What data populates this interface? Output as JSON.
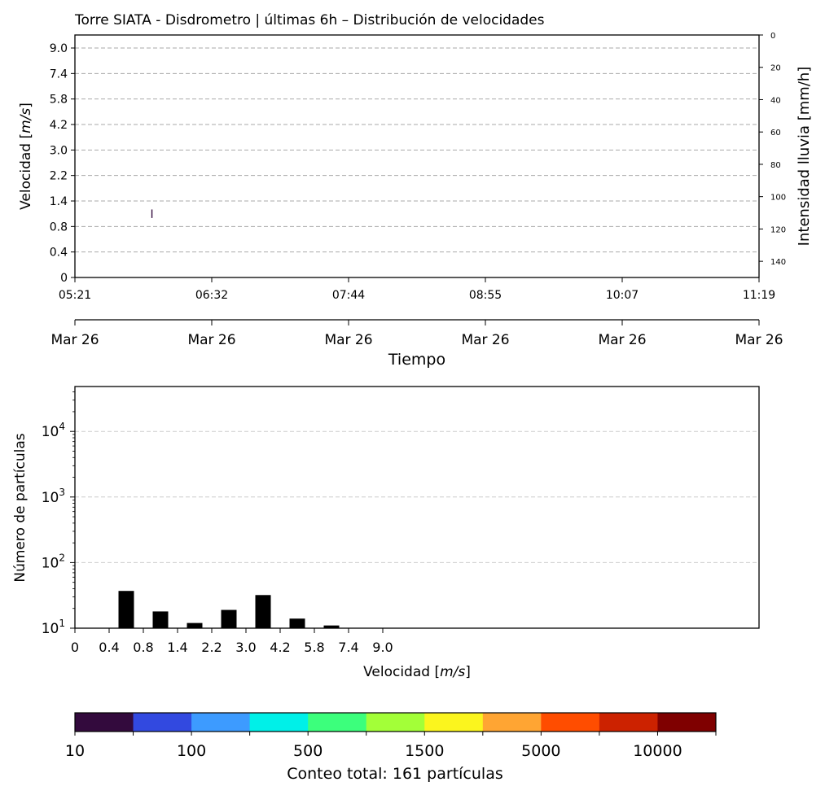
{
  "chart_data": [
    {
      "type": "heatmap",
      "title": "Torre SIATA - Disdrometro | últimas 6h – Distribución de velocidades",
      "ylabel": "Velocidad [$m/s$]",
      "ylabel_main": "Velocidad [",
      "ylabel_unit": "m/s",
      "ylabel_end": "]",
      "xlabel": "Tiempo",
      "y_ticks": [
        "0",
        "0.4",
        "0.8",
        "1.4",
        "2.2",
        "3.0",
        "4.2",
        "5.8",
        "7.4",
        "9.0"
      ],
      "x_time_ticks": [
        "05:21",
        "06:32",
        "07:44",
        "08:55",
        "10:07",
        "11:19"
      ],
      "x_date_ticks": [
        "Mar 26",
        "Mar 26",
        "Mar 26",
        "Mar 26",
        "Mar 26",
        "Mar 26"
      ],
      "secondary_ylabel": "Intensidad lluvia [mm/h]",
      "secondary_y_ticks": [
        "0",
        "20",
        "40",
        "60",
        "80",
        "100",
        "120",
        "140"
      ],
      "secondary_ylim": [
        0,
        150
      ],
      "grid": "horizontal dashed",
      "cells": [
        {
          "time": "06:01",
          "velocity_bin": "1.0–1.2",
          "count": 10
        }
      ]
    },
    {
      "type": "bar",
      "ylabel": "Número de partículas",
      "xlabel": "Velocidad [$m/s$]",
      "xlabel_main": "Velocidad [",
      "xlabel_unit": "m/s",
      "xlabel_end": "]",
      "y_scale": "log",
      "ylim": [
        10,
        50000
      ],
      "y_ticks": [
        "10",
        "10",
        "10",
        "10"
      ],
      "y_tick_exponents": [
        "1",
        "2",
        "3",
        "4"
      ],
      "x_ticks": [
        "0",
        "0.4",
        "0.8",
        "1.4",
        "2.2",
        "3.0",
        "4.2",
        "5.8",
        "7.4",
        "9.0"
      ],
      "grid": "horizontal dashed",
      "bar_color": "#000000",
      "bars": [
        {
          "bin": 1.5,
          "value": 37
        },
        {
          "bin": 2.5,
          "value": 18
        },
        {
          "bin": 3.5,
          "value": 12
        },
        {
          "bin": 4.5,
          "value": 19
        },
        {
          "bin": 5.5,
          "value": 32
        },
        {
          "bin": 6.5,
          "value": 14
        },
        {
          "bin": 7.5,
          "value": 11
        }
      ]
    }
  ],
  "colorbar": {
    "tick_labels": [
      "10",
      "100",
      "500",
      "1500",
      "5000",
      "10000"
    ],
    "label": "Conteo total: 161 partículas",
    "colors": [
      "#330a3d",
      "#3249e0",
      "#3d9bff",
      "#00f0e8",
      "#3cff7c",
      "#a3ff38",
      "#fbf51e",
      "#ffa533",
      "#ff4d00",
      "#cc2200",
      "#7f0000"
    ]
  }
}
